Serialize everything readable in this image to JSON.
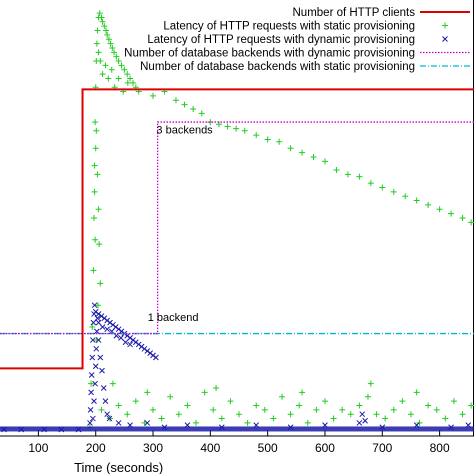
{
  "chart_data": {
    "type": "scatter",
    "xlabel": "Time (seconds)",
    "x_ticks": [
      100,
      200,
      300,
      400,
      500,
      600,
      700,
      800
    ],
    "xlim": [
      33,
      860
    ],
    "ylim": [
      0,
      1
    ],
    "grid": false,
    "legend_position": "top-right",
    "colors": {
      "clients": "#dd0000",
      "static_latency": "#22cc22",
      "dynamic_latency": "#1a1aaa",
      "dynamic_backends": "#cc00cc",
      "static_backends": "#00bbcc"
    },
    "legend": [
      "Number of HTTP clients",
      "Latency of HTTP requests with static provisioning",
      "Latency of HTTP requests with dynamic provisioning",
      "Number of database backends with dynamic provisioning",
      "Number of database backends with static provisioning"
    ],
    "annotations": [
      {
        "text": "3 backends",
        "x": 355,
        "y": 0.685
      },
      {
        "text": "1 backend",
        "x": 335,
        "y": 0.255
      }
    ],
    "series": [
      {
        "name": "Number of HTTP clients",
        "kind": "step",
        "x": [
          33,
          177,
          177,
          860
        ],
        "y": [
          0.155,
          0.155,
          0.795,
          0.795
        ]
      },
      {
        "name": "Number of database backends with dynamic provisioning",
        "kind": "step",
        "x": [
          33,
          308,
          308,
          860
        ],
        "y": [
          0.235,
          0.235,
          0.72,
          0.72
        ]
      },
      {
        "name": "Number of database backends with static provisioning",
        "kind": "step",
        "x": [
          33,
          860
        ],
        "y": [
          0.235,
          0.235
        ]
      },
      {
        "name": "Latency of HTTP requests with static provisioning",
        "kind": "scatter",
        "points": [
          [
            190,
            0.02
          ],
          [
            192,
            0.12
          ],
          [
            194,
            0.25
          ],
          [
            196,
            0.38
          ],
          [
            197,
            0.5
          ],
          [
            198,
            0.62
          ],
          [
            199,
            0.72
          ],
          [
            200,
            0.8
          ],
          [
            201,
            0.86
          ],
          [
            202,
            0.9
          ],
          [
            203,
            0.93
          ],
          [
            205,
            0.96
          ],
          [
            207,
            0.97
          ],
          [
            210,
            0.96
          ],
          [
            212,
            0.95
          ],
          [
            215,
            0.94
          ],
          [
            218,
            0.93
          ],
          [
            220,
            0.92
          ],
          [
            223,
            0.91
          ],
          [
            226,
            0.9
          ],
          [
            229,
            0.89
          ],
          [
            232,
            0.88
          ],
          [
            236,
            0.87
          ],
          [
            240,
            0.86
          ],
          [
            245,
            0.85
          ],
          [
            250,
            0.84
          ],
          [
            255,
            0.83
          ],
          [
            260,
            0.82
          ],
          [
            265,
            0.81
          ],
          [
            270,
            0.8
          ],
          [
            275,
            0.79
          ],
          [
            205,
            0.88
          ],
          [
            208,
            0.86
          ],
          [
            212,
            0.83
          ],
          [
            217,
            0.85
          ],
          [
            222,
            0.82
          ],
          [
            228,
            0.84
          ],
          [
            233,
            0.8
          ],
          [
            240,
            0.82
          ],
          [
            248,
            0.79
          ],
          [
            256,
            0.81
          ],
          [
            201,
            0.7
          ],
          [
            203,
            0.6
          ],
          [
            205,
            0.52
          ],
          [
            206,
            0.44
          ],
          [
            208,
            0.35
          ],
          [
            204,
            0.3
          ],
          [
            202,
            0.22
          ],
          [
            199,
            0.45
          ],
          [
            198,
            0.56
          ],
          [
            200,
            0.66
          ],
          [
            300,
            0.78
          ],
          [
            320,
            0.79
          ],
          [
            340,
            0.77
          ],
          [
            355,
            0.76
          ],
          [
            370,
            0.75
          ],
          [
            385,
            0.74
          ],
          [
            400,
            0.72
          ],
          [
            415,
            0.715
          ],
          [
            430,
            0.71
          ],
          [
            445,
            0.705
          ],
          [
            460,
            0.7
          ],
          [
            480,
            0.69
          ],
          [
            500,
            0.68
          ],
          [
            520,
            0.675
          ],
          [
            540,
            0.66
          ],
          [
            560,
            0.65
          ],
          [
            580,
            0.64
          ],
          [
            600,
            0.63
          ],
          [
            620,
            0.61
          ],
          [
            640,
            0.6
          ],
          [
            660,
            0.595
          ],
          [
            680,
            0.58
          ],
          [
            700,
            0.57
          ],
          [
            720,
            0.56
          ],
          [
            740,
            0.55
          ],
          [
            760,
            0.54
          ],
          [
            780,
            0.53
          ],
          [
            800,
            0.52
          ],
          [
            820,
            0.51
          ],
          [
            840,
            0.5
          ],
          [
            855,
            0.49
          ],
          [
            210,
            0.06
          ],
          [
            225,
            0.04
          ],
          [
            240,
            0.07
          ],
          [
            255,
            0.05
          ],
          [
            270,
            0.08
          ],
          [
            285,
            0.03
          ],
          [
            300,
            0.06
          ],
          [
            315,
            0.04
          ],
          [
            330,
            0.09
          ],
          [
            345,
            0.05
          ],
          [
            360,
            0.07
          ],
          [
            375,
            0.03
          ],
          [
            390,
            0.1
          ],
          [
            405,
            0.06
          ],
          [
            420,
            0.04
          ],
          [
            435,
            0.08
          ],
          [
            450,
            0.05
          ],
          [
            465,
            0.03
          ],
          [
            480,
            0.07
          ],
          [
            495,
            0.06
          ],
          [
            510,
            0.04
          ],
          [
            525,
            0.09
          ],
          [
            540,
            0.05
          ],
          [
            555,
            0.07
          ],
          [
            570,
            0.03
          ],
          [
            585,
            0.06
          ],
          [
            600,
            0.08
          ],
          [
            615,
            0.04
          ],
          [
            630,
            0.06
          ],
          [
            645,
            0.05
          ],
          [
            660,
            0.07
          ],
          [
            675,
            0.09
          ],
          [
            690,
            0.05
          ],
          [
            705,
            0.04
          ],
          [
            720,
            0.06
          ],
          [
            735,
            0.08
          ],
          [
            750,
            0.05
          ],
          [
            765,
            0.03
          ],
          [
            780,
            0.07
          ],
          [
            795,
            0.06
          ],
          [
            810,
            0.04
          ],
          [
            825,
            0.08
          ],
          [
            840,
            0.05
          ],
          [
            855,
            0.07
          ],
          [
            230,
            0.12
          ],
          [
            290,
            0.1
          ],
          [
            410,
            0.11
          ],
          [
            560,
            0.1
          ],
          [
            680,
            0.12
          ],
          [
            760,
            0.1
          ]
        ]
      },
      {
        "name": "Latency of HTTP requests with dynamic provisioning",
        "kind": "scatter",
        "points": [
          [
            190,
            0.03
          ],
          [
            191,
            0.06
          ],
          [
            192,
            0.1
          ],
          [
            193,
            0.14
          ],
          [
            194,
            0.18
          ],
          [
            195,
            0.22
          ],
          [
            196,
            0.26
          ],
          [
            197,
            0.28
          ],
          [
            198,
            0.3
          ],
          [
            195,
            0.04
          ],
          [
            197,
            0.08
          ],
          [
            199,
            0.12
          ],
          [
            200,
            0.16
          ],
          [
            201,
            0.2
          ],
          [
            202,
            0.24
          ],
          [
            203,
            0.27
          ],
          [
            200,
            0.285
          ],
          [
            205,
            0.28
          ],
          [
            210,
            0.275
          ],
          [
            215,
            0.27
          ],
          [
            220,
            0.265
          ],
          [
            225,
            0.26
          ],
          [
            230,
            0.255
          ],
          [
            235,
            0.25
          ],
          [
            240,
            0.245
          ],
          [
            245,
            0.24
          ],
          [
            250,
            0.235
          ],
          [
            255,
            0.23
          ],
          [
            260,
            0.225
          ],
          [
            265,
            0.22
          ],
          [
            270,
            0.215
          ],
          [
            275,
            0.21
          ],
          [
            280,
            0.205
          ],
          [
            285,
            0.2
          ],
          [
            290,
            0.195
          ],
          [
            295,
            0.19
          ],
          [
            300,
            0.185
          ],
          [
            305,
            0.18
          ],
          [
            205,
            0.26
          ],
          [
            212,
            0.25
          ],
          [
            220,
            0.245
          ],
          [
            228,
            0.24
          ],
          [
            236,
            0.23
          ],
          [
            244,
            0.225
          ],
          [
            252,
            0.215
          ],
          [
            260,
            0.21
          ],
          [
            205,
            0.22
          ],
          [
            208,
            0.18
          ],
          [
            211,
            0.15
          ],
          [
            214,
            0.11
          ],
          [
            217,
            0.08
          ],
          [
            220,
            0.05
          ],
          [
            224,
            0.04
          ],
          [
            240,
            0.03
          ],
          [
            260,
            0.025
          ],
          [
            290,
            0.03
          ],
          [
            320,
            0.02
          ],
          [
            360,
            0.025
          ],
          [
            420,
            0.02
          ],
          [
            480,
            0.025
          ],
          [
            540,
            0.02
          ],
          [
            600,
            0.025
          ],
          [
            660,
            0.03
          ],
          [
            665,
            0.05
          ],
          [
            670,
            0.035
          ],
          [
            700,
            0.02
          ],
          [
            760,
            0.025
          ],
          [
            820,
            0.02
          ],
          [
            850,
            0.025
          ],
          [
            110,
            0.015
          ],
          [
            140,
            0.015
          ],
          [
            170,
            0.015
          ],
          [
            40,
            0.015
          ],
          [
            70,
            0.015
          ]
        ]
      }
    ]
  }
}
